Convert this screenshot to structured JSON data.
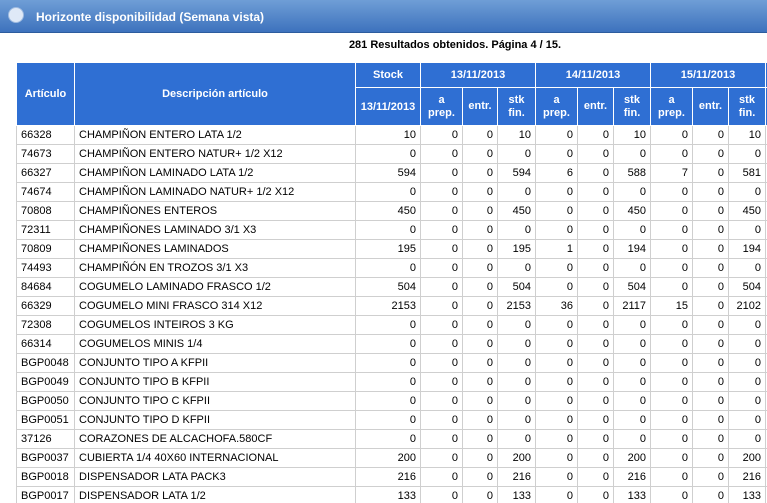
{
  "header": {
    "title": "Horizonte disponibilidad (Semana vista)",
    "results": "281 Resultados obtenidos. Página 4 / 15."
  },
  "table": {
    "columns": {
      "article": "Artículo",
      "description": "Descripción artículo",
      "stock": "Stock",
      "stock_date": "13/11/2013",
      "dates": [
        "13/11/2013",
        "14/11/2013",
        "15/11/2013"
      ],
      "subcolumns": [
        "a prep.",
        "entr.",
        "stk fin."
      ]
    },
    "rows": [
      [
        "66328",
        "CHAMPIÑON ENTERO LATA 1/2",
        10,
        0,
        0,
        10,
        0,
        0,
        10,
        0,
        0,
        10
      ],
      [
        "74673",
        "CHAMPIÑON ENTERO NATUR+ 1/2 X12",
        0,
        0,
        0,
        0,
        0,
        0,
        0,
        0,
        0,
        0
      ],
      [
        "66327",
        "CHAMPIÑON LAMINADO LATA 1/2",
        594,
        0,
        0,
        594,
        6,
        0,
        588,
        7,
        0,
        581
      ],
      [
        "74674",
        "CHAMPIÑON LAMINADO NATUR+ 1/2 X12",
        0,
        0,
        0,
        0,
        0,
        0,
        0,
        0,
        0,
        0
      ],
      [
        "70808",
        "CHAMPIÑONES ENTEROS",
        450,
        0,
        0,
        450,
        0,
        0,
        450,
        0,
        0,
        450
      ],
      [
        "72311",
        "CHAMPIÑONES LAMINADO 3/1 X3",
        0,
        0,
        0,
        0,
        0,
        0,
        0,
        0,
        0,
        0
      ],
      [
        "70809",
        "CHAMPIÑONES LAMINADOS",
        195,
        0,
        0,
        195,
        1,
        0,
        194,
        0,
        0,
        194
      ],
      [
        "74493",
        "CHAMPIÑÓN EN TROZOS 3/1 X3",
        0,
        0,
        0,
        0,
        0,
        0,
        0,
        0,
        0,
        0
      ],
      [
        "84684",
        "COGUMELO LAMINADO FRASCO 1/2",
        504,
        0,
        0,
        504,
        0,
        0,
        504,
        0,
        0,
        504
      ],
      [
        "66329",
        "COGUMELO MINI FRASCO 314 X12",
        2153,
        0,
        0,
        2153,
        36,
        0,
        2117,
        15,
        0,
        2102
      ],
      [
        "72308",
        "COGUMELOS INTEIROS 3 KG",
        0,
        0,
        0,
        0,
        0,
        0,
        0,
        0,
        0,
        0
      ],
      [
        "66314",
        "COGUMELOS MINIS 1/4",
        0,
        0,
        0,
        0,
        0,
        0,
        0,
        0,
        0,
        0
      ],
      [
        "BGP0048",
        "CONJUNTO TIPO A KFPII",
        0,
        0,
        0,
        0,
        0,
        0,
        0,
        0,
        0,
        0
      ],
      [
        "BGP0049",
        "CONJUNTO TIPO B KFPII",
        0,
        0,
        0,
        0,
        0,
        0,
        0,
        0,
        0,
        0
      ],
      [
        "BGP0050",
        "CONJUNTO TIPO C KFPII",
        0,
        0,
        0,
        0,
        0,
        0,
        0,
        0,
        0,
        0
      ],
      [
        "BGP0051",
        "CONJUNTO TIPO D KFPII",
        0,
        0,
        0,
        0,
        0,
        0,
        0,
        0,
        0,
        0
      ],
      [
        "37126",
        "CORAZONES DE ALCACHOFA.580CF",
        0,
        0,
        0,
        0,
        0,
        0,
        0,
        0,
        0,
        0
      ],
      [
        "BGP0037",
        "CUBIERTA 1/4 40X60 INTERNACIONAL",
        200,
        0,
        0,
        200,
        0,
        0,
        200,
        0,
        0,
        200
      ],
      [
        "BGP0018",
        "DISPENSADOR LATA PACK3",
        216,
        0,
        0,
        216,
        0,
        0,
        216,
        0,
        0,
        216
      ],
      [
        "BGP0017",
        "DISPENSADOR LATA 1/2",
        133,
        0,
        0,
        133,
        0,
        0,
        133,
        0,
        0,
        133
      ]
    ]
  }
}
